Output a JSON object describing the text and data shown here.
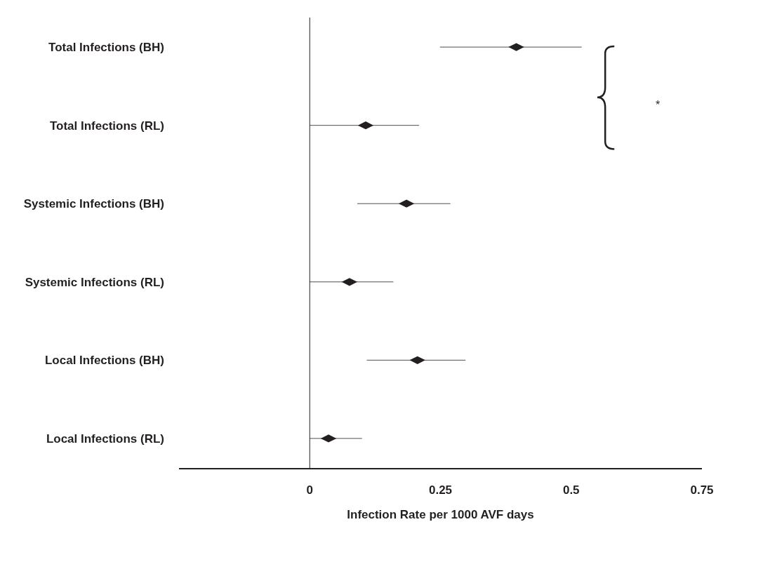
{
  "chart_data": {
    "type": "scatter",
    "orientation": "horizontal",
    "xlabel": "Infection Rate per 1000 AVF days",
    "categories": [
      "Total Infections (BH)",
      "Total Infections (RL)",
      "Systemic Infections (BH)",
      "Systemic Infections (RL)",
      "Local Infections (BH)",
      "Local Infections (RL)"
    ],
    "series": [
      {
        "color": "#231f20",
        "values": [
          0.395,
          0.107,
          0.185,
          0.076,
          0.206,
          0.036
        ],
        "errors": [
          [
            0.249,
            0.52
          ],
          [
            0,
            0.209
          ],
          [
            0.091,
            0.269
          ],
          [
            0,
            0.16
          ],
          [
            0.109,
            0.298
          ],
          [
            0,
            0.1
          ]
        ]
      }
    ],
    "xlim": [
      -0.25,
      0.75
    ],
    "xticks": [
      0,
      0.25,
      0.5,
      0.75
    ],
    "ref_lines": [
      {
        "axis": "x",
        "value": 0,
        "color": "#231f20"
      }
    ],
    "annotations": [
      "*"
    ],
    "marker": "diamond"
  }
}
